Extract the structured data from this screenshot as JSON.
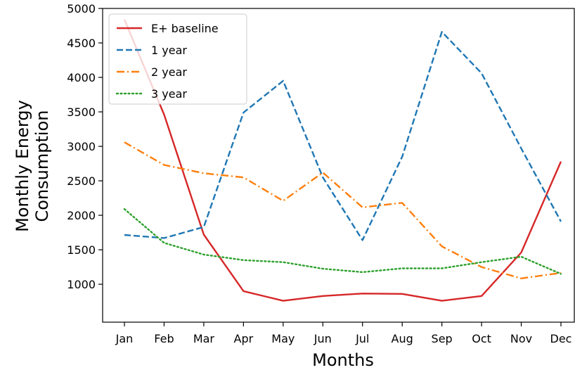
{
  "chart_data": {
    "type": "line",
    "title": "",
    "xlabel": "Months",
    "ylabel": [
      "Monthly Energy",
      "Consumption"
    ],
    "categories": [
      "Jan",
      "Feb",
      "Mar",
      "Apr",
      "May",
      "Jun",
      "Jul",
      "Aug",
      "Sep",
      "Oct",
      "Nov",
      "Dec"
    ],
    "ylim": [
      450,
      5000
    ],
    "yticks": [
      "1000",
      "1500",
      "2000",
      "2500",
      "3000",
      "3500",
      "4000",
      "4500",
      "5000"
    ],
    "legend_position": "top-left",
    "grid": false,
    "series": [
      {
        "name": "E+ baseline",
        "color": "#d62728",
        "style": "solid",
        "values": [
          4840,
          3460,
          1720,
          900,
          760,
          830,
          865,
          860,
          760,
          830,
          1460,
          2780
        ]
      },
      {
        "name": "1 year",
        "color": "#1f77b4",
        "style": "dashed",
        "values": [
          1715,
          1670,
          1830,
          3490,
          3950,
          2550,
          1640,
          2850,
          4660,
          4060,
          2970,
          1910
        ]
      },
      {
        "name": "2 year",
        "color": "#ff7f0e",
        "style": "dashdot",
        "values": [
          3060,
          2730,
          2610,
          2550,
          2210,
          2620,
          2115,
          2180,
          1550,
          1250,
          1085,
          1165
        ]
      },
      {
        "name": "3 year",
        "color": "#2ca02c",
        "style": "dotted",
        "values": [
          2090,
          1600,
          1430,
          1350,
          1320,
          1225,
          1175,
          1230,
          1230,
          1320,
          1400,
          1150
        ]
      }
    ]
  }
}
